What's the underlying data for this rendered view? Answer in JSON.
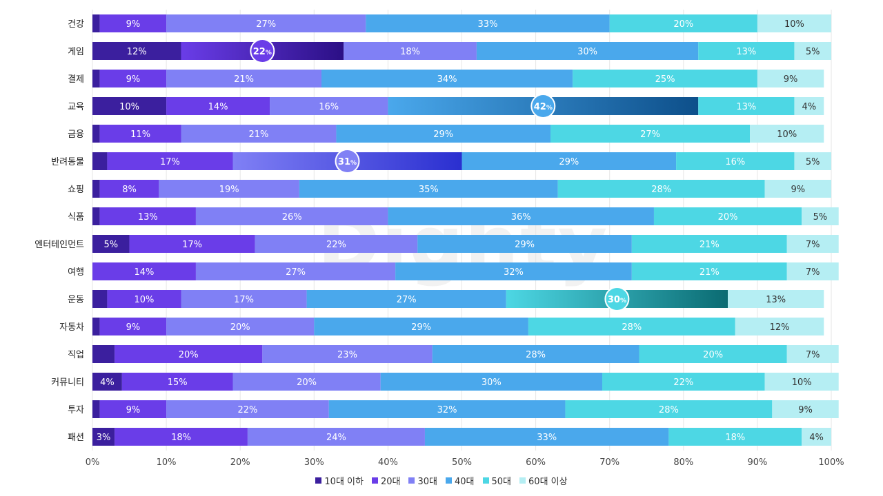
{
  "watermark": "Dighty",
  "chart_data": {
    "type": "bar",
    "orientation": "horizontal",
    "stacked": true,
    "normalized": true,
    "categories": [
      "건강",
      "게임",
      "결제",
      "교육",
      "금융",
      "반려동물",
      "쇼핑",
      "식품",
      "엔터테인먼트",
      "여행",
      "운동",
      "자동차",
      "직업",
      "커뮤니티",
      "투자",
      "패션"
    ],
    "series": [
      {
        "name": "10대 이하",
        "color": "#3b1f9e",
        "values": [
          1,
          12,
          1,
          10,
          1,
          2,
          1,
          1,
          5,
          0,
          2,
          1,
          3,
          4,
          1,
          3
        ]
      },
      {
        "name": "20대",
        "color": "#6a3de8",
        "values": [
          9,
          22,
          9,
          14,
          11,
          17,
          8,
          13,
          17,
          14,
          10,
          9,
          20,
          15,
          9,
          18
        ]
      },
      {
        "name": "30대",
        "color": "#8080f5",
        "values": [
          27,
          18,
          21,
          16,
          21,
          31,
          19,
          26,
          22,
          27,
          17,
          20,
          23,
          20,
          22,
          24
        ]
      },
      {
        "name": "40대",
        "color": "#4aa8ec",
        "values": [
          33,
          30,
          34,
          42,
          29,
          29,
          35,
          36,
          29,
          32,
          27,
          29,
          28,
          30,
          32,
          33
        ]
      },
      {
        "name": "50대",
        "color": "#4dd7e4",
        "values": [
          20,
          13,
          25,
          13,
          27,
          16,
          28,
          20,
          21,
          21,
          30,
          28,
          20,
          22,
          28,
          18
        ]
      },
      {
        "name": "60대 이상",
        "color": "#b5eef3",
        "values": [
          10,
          5,
          9,
          4,
          10,
          5,
          9,
          5,
          7,
          7,
          13,
          12,
          7,
          10,
          9,
          4
        ]
      }
    ],
    "labels": [
      [
        "",
        "9%",
        "27%",
        "33%",
        "20%",
        "10%"
      ],
      [
        "12%",
        "22%",
        "18%",
        "30%",
        "13%",
        "5%"
      ],
      [
        "",
        "9%",
        "21%",
        "34%",
        "25%",
        "9%"
      ],
      [
        "10%",
        "14%",
        "16%",
        "42%",
        "13%",
        "4%"
      ],
      [
        "",
        "11%",
        "21%",
        "29%",
        "27%",
        "10%"
      ],
      [
        "",
        "17%",
        "31%",
        "29%",
        "16%",
        "5%"
      ],
      [
        "",
        "8%",
        "19%",
        "35%",
        "28%",
        "9%"
      ],
      [
        "",
        "13%",
        "26%",
        "36%",
        "20%",
        "5%"
      ],
      [
        "5%",
        "17%",
        "22%",
        "29%",
        "21%",
        "7%"
      ],
      [
        "",
        "14%",
        "27%",
        "32%",
        "21%",
        "7%"
      ],
      [
        "",
        "10%",
        "17%",
        "27%",
        "30%",
        "13%"
      ],
      [
        "",
        "9%",
        "20%",
        "29%",
        "28%",
        "12%"
      ],
      [
        "",
        "20%",
        "23%",
        "28%",
        "20%",
        "7%"
      ],
      [
        "4%",
        "15%",
        "20%",
        "30%",
        "22%",
        "10%"
      ],
      [
        "",
        "9%",
        "22%",
        "32%",
        "28%",
        "9%"
      ],
      [
        "3%",
        "18%",
        "24%",
        "33%",
        "18%",
        "4%"
      ]
    ],
    "highlights": [
      {
        "category": "게임",
        "series": "20대",
        "label": "22",
        "unit": "%"
      },
      {
        "category": "교육",
        "series": "40대",
        "label": "42",
        "unit": "%"
      },
      {
        "category": "반려동물",
        "series": "30대",
        "label": "31",
        "unit": "%"
      },
      {
        "category": "운동",
        "series": "50대",
        "label": "30",
        "unit": "%"
      }
    ],
    "xlim": [
      0,
      100
    ],
    "xticks": [
      "0%",
      "10%",
      "20%",
      "30%",
      "40%",
      "50%",
      "60%",
      "70%",
      "80%",
      "90%",
      "100%"
    ],
    "grid": true,
    "legend_position": "bottom"
  }
}
